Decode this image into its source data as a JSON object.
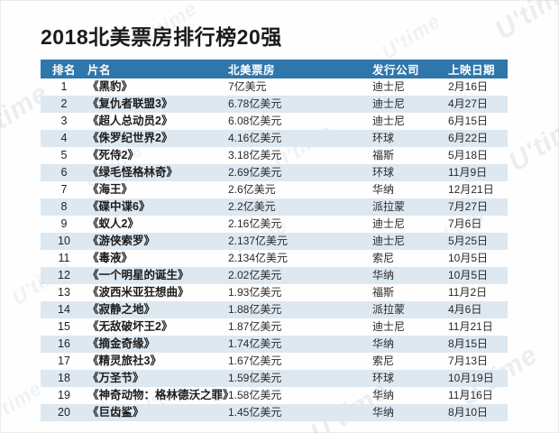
{
  "page": {
    "title": "2018北美票房排行榜20强",
    "watermark_text": "U'time"
  },
  "table": {
    "columns": [
      "排名",
      "片名",
      "北美票房",
      "发行公司",
      "上映日期"
    ],
    "rows": [
      {
        "rank": "1",
        "title": "《黑豹》",
        "box_office": "7亿美元",
        "distributor": "迪士尼",
        "release_date": "2月16日"
      },
      {
        "rank": "2",
        "title": "《复仇者联盟3》",
        "box_office": "6.78亿美元",
        "distributor": "迪士尼",
        "release_date": "4月27日"
      },
      {
        "rank": "3",
        "title": "《超人总动员2》",
        "box_office": "6.08亿美元",
        "distributor": "迪士尼",
        "release_date": "6月15日"
      },
      {
        "rank": "4",
        "title": "《侏罗纪世界2》",
        "box_office": "4.16亿美元",
        "distributor": "环球",
        "release_date": "6月22日"
      },
      {
        "rank": "5",
        "title": "《死侍2》",
        "box_office": "3.18亿美元",
        "distributor": "福斯",
        "release_date": "5月18日"
      },
      {
        "rank": "6",
        "title": "《绿毛怪格林奇》",
        "box_office": "2.69亿美元",
        "distributor": "环球",
        "release_date": "11月9日"
      },
      {
        "rank": "7",
        "title": "《海王》",
        "box_office": "2.6亿美元",
        "distributor": "华纳",
        "release_date": "12月21日"
      },
      {
        "rank": "8",
        "title": "《碟中谍6》",
        "box_office": "2.2亿美元",
        "distributor": "派拉蒙",
        "release_date": "7月27日"
      },
      {
        "rank": "9",
        "title": "《蚁人2》",
        "box_office": "2.16亿美元",
        "distributor": "迪士尼",
        "release_date": "7月6日"
      },
      {
        "rank": "10",
        "title": "《游侠索罗》",
        "box_office": "2.137亿美元",
        "distributor": "迪士尼",
        "release_date": "5月25日"
      },
      {
        "rank": "11",
        "title": "《毒液》",
        "box_office": "2.134亿美元",
        "distributor": "索尼",
        "release_date": "10月5日"
      },
      {
        "rank": "12",
        "title": "《一个明星的诞生》",
        "box_office": "2.02亿美元",
        "distributor": "华纳",
        "release_date": "10月5日"
      },
      {
        "rank": "13",
        "title": "《波西米亚狂想曲》",
        "box_office": "1.93亿美元",
        "distributor": "福斯",
        "release_date": "11月2日"
      },
      {
        "rank": "14",
        "title": "《寂静之地》",
        "box_office": "1.88亿美元",
        "distributor": "派拉蒙",
        "release_date": "4月6日"
      },
      {
        "rank": "15",
        "title": "《无敌破坏王2》",
        "box_office": "1.87亿美元",
        "distributor": "迪士尼",
        "release_date": "11月21日"
      },
      {
        "rank": "16",
        "title": "《摘金奇缘》",
        "box_office": "1.74亿美元",
        "distributor": "华纳",
        "release_date": "8月15日"
      },
      {
        "rank": "17",
        "title": "《精灵旅社3》",
        "box_office": "1.67亿美元",
        "distributor": "索尼",
        "release_date": "7月13日"
      },
      {
        "rank": "18",
        "title": "《万圣节》",
        "box_office": "1.59亿美元",
        "distributor": "环球",
        "release_date": "10月19日"
      },
      {
        "rank": "19",
        "title": "《神奇动物：格林德沃之罪》",
        "box_office": "1.58亿美元",
        "distributor": "华纳",
        "release_date": "11月16日"
      },
      {
        "rank": "20",
        "title": "《巨齿鲨》",
        "box_office": "1.45亿美元",
        "distributor": "华纳",
        "release_date": "8月10日"
      }
    ]
  }
}
